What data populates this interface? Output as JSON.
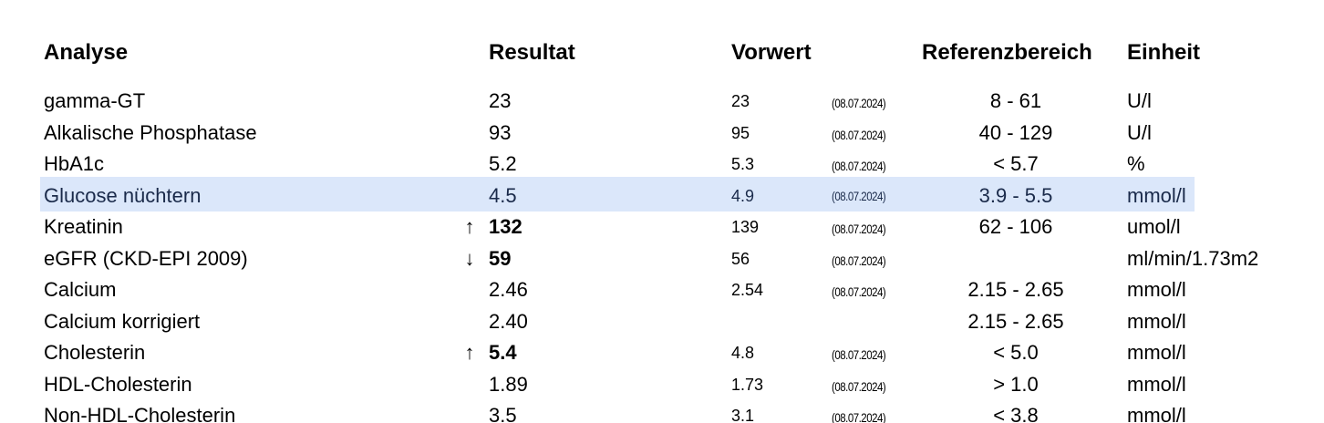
{
  "headers": {
    "analyse": "Analyse",
    "resultat": "Resultat",
    "vorwert": "Vorwert",
    "referenzbereich": "Referenzbereich",
    "einheit": "Einheit"
  },
  "rows": [
    {
      "name": "gamma-GT",
      "flag": "",
      "result": "23",
      "bold": false,
      "prev": "23",
      "date": "(08.07.2024)",
      "ref": "8 - 61",
      "unit": "U/l",
      "highlight": false
    },
    {
      "name": "Alkalische Phosphatase",
      "flag": "",
      "result": "93",
      "bold": false,
      "prev": "95",
      "date": "(08.07.2024)",
      "ref": "40 - 129",
      "unit": "U/l",
      "highlight": false
    },
    {
      "name": "HbA1c",
      "flag": "",
      "result": "5.2",
      "bold": false,
      "prev": "5.3",
      "date": "(08.07.2024)",
      "ref": "< 5.7",
      "unit": "%",
      "highlight": false
    },
    {
      "name": "Glucose nüchtern",
      "flag": "",
      "result": "4.5",
      "bold": false,
      "prev": "4.9",
      "date": "(08.07.2024)",
      "ref": "3.9 - 5.5",
      "unit": "mmol/l",
      "highlight": true
    },
    {
      "name": "Kreatinin",
      "flag": "↑",
      "result": "132",
      "bold": true,
      "prev": "139",
      "date": "(08.07.2024)",
      "ref": "62 - 106",
      "unit": "umol/l",
      "highlight": false
    },
    {
      "name": "eGFR (CKD-EPI 2009)",
      "flag": "↓",
      "result": "59",
      "bold": true,
      "prev": "56",
      "date": "(08.07.2024)",
      "ref": "",
      "unit": "ml/min/1.73m2",
      "highlight": false
    },
    {
      "name": "Calcium",
      "flag": "",
      "result": "2.46",
      "bold": false,
      "prev": "2.54",
      "date": "(08.07.2024)",
      "ref": "2.15 - 2.65",
      "unit": "mmol/l",
      "highlight": false
    },
    {
      "name": "Calcium korrigiert",
      "flag": "",
      "result": "2.40",
      "bold": false,
      "prev": "",
      "date": "",
      "ref": "2.15 - 2.65",
      "unit": "mmol/l",
      "highlight": false
    },
    {
      "name": "Cholesterin",
      "flag": "↑",
      "result": "5.4",
      "bold": true,
      "prev": "4.8",
      "date": "(08.07.2024)",
      "ref": "< 5.0",
      "unit": "mmol/l",
      "highlight": false
    },
    {
      "name": "HDL-Cholesterin",
      "flag": "",
      "result": "1.89",
      "bold": false,
      "prev": "1.73",
      "date": "(08.07.2024)",
      "ref": "> 1.0",
      "unit": "mmol/l",
      "highlight": false
    },
    {
      "name": "Non-HDL-Cholesterin",
      "flag": "",
      "result": "3.5",
      "bold": false,
      "prev": "3.1",
      "date": "(08.07.2024)",
      "ref": "< 3.8",
      "unit": "mmol/l",
      "highlight": false
    }
  ],
  "colors": {
    "highlight": "#dbe7fa"
  }
}
